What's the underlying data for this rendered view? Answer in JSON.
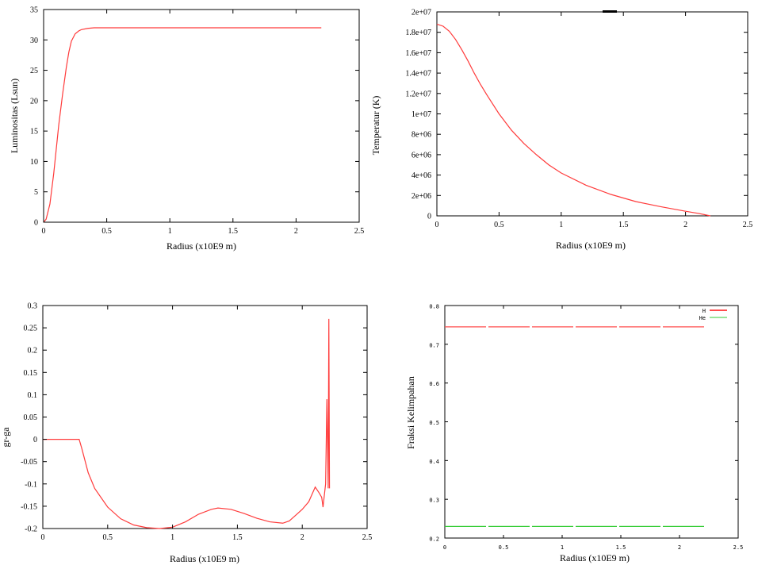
{
  "chart_data": [
    {
      "type": "line",
      "xlabel": "Radius (x10E9 m)",
      "ylabel": "Luminositas (Lsun)",
      "xlim": [
        0,
        2.5
      ],
      "ylim": [
        0,
        35
      ],
      "xticks": [
        "0",
        "0.5",
        "1",
        "1.5",
        "2",
        "2.5"
      ],
      "yticks": [
        "0",
        "5",
        "10",
        "15",
        "20",
        "25",
        "30",
        "35"
      ],
      "grid": false,
      "series": [
        {
          "color": "#ff3b3b",
          "x": [
            0,
            0.02,
            0.05,
            0.08,
            0.1,
            0.12,
            0.15,
            0.18,
            0.2,
            0.22,
            0.25,
            0.28,
            0.3,
            0.35,
            0.4,
            0.5,
            0.7,
            1.0,
            1.5,
            2.0,
            2.2
          ],
          "y": [
            0,
            0.5,
            3,
            8,
            12,
            16,
            21,
            25.5,
            28,
            29.8,
            31,
            31.5,
            31.7,
            31.9,
            32,
            32,
            32,
            32,
            32,
            32,
            32
          ]
        }
      ]
    },
    {
      "type": "line",
      "xlabel": "Radius (x10E9 m)",
      "ylabel": "Temperatur (K)",
      "xlim": [
        0,
        2.5
      ],
      "ylim": [
        0,
        20000000
      ],
      "xticks": [
        "0",
        "0.5",
        "1",
        "1.5",
        "2",
        "2.5"
      ],
      "yticks": [
        "0",
        "2e+06",
        "4e+06",
        "6e+06",
        "8e+06",
        "1e+07",
        "1.2e+07",
        "1.4e+07",
        "1.6e+07",
        "1.8e+07",
        "2e+07"
      ],
      "grid": false,
      "series": [
        {
          "color": "#ff3b3b",
          "x": [
            0,
            0.05,
            0.1,
            0.15,
            0.2,
            0.25,
            0.3,
            0.35,
            0.4,
            0.5,
            0.6,
            0.7,
            0.8,
            0.9,
            1.0,
            1.2,
            1.4,
            1.6,
            1.8,
            2.0,
            2.1,
            2.2
          ],
          "y": [
            18800000,
            18600000,
            18100000,
            17300000,
            16300000,
            15200000,
            14000000,
            12900000,
            11900000,
            10000000,
            8400000,
            7100000,
            6000000,
            5000000,
            4200000,
            3000000,
            2100000,
            1400000,
            900000,
            450000,
            250000,
            0
          ]
        }
      ]
    },
    {
      "type": "line",
      "xlabel": "Radius (x10E9 m)",
      "ylabel": "gr-ga",
      "xlim": [
        0,
        2.5
      ],
      "ylim": [
        -0.2,
        0.3
      ],
      "xticks": [
        "0",
        "0.5",
        "1",
        "1.5",
        "2",
        "2.5"
      ],
      "yticks": [
        "-0.2",
        "-0.15",
        "-0.1",
        "-0.05",
        "0",
        "0.05",
        "0.1",
        "0.15",
        "0.2",
        "0.25",
        "0.3"
      ],
      "grid": false,
      "series": [
        {
          "color": "#ff3b3b",
          "x": [
            0,
            0.1,
            0.2,
            0.28,
            0.3,
            0.35,
            0.4,
            0.5,
            0.6,
            0.7,
            0.8,
            0.9,
            1.0,
            1.1,
            1.2,
            1.3,
            1.35,
            1.45,
            1.55,
            1.65,
            1.75,
            1.85,
            1.9,
            1.95,
            2.0,
            2.05,
            2.1,
            2.13,
            2.15,
            2.16,
            2.18,
            2.19,
            2.2,
            2.205,
            2.21
          ],
          "y": [
            0,
            0,
            0,
            0,
            -0.02,
            -0.075,
            -0.11,
            -0.152,
            -0.178,
            -0.192,
            -0.198,
            -0.2,
            -0.197,
            -0.185,
            -0.168,
            -0.157,
            -0.154,
            -0.157,
            -0.166,
            -0.177,
            -0.185,
            -0.188,
            -0.183,
            -0.17,
            -0.157,
            -0.14,
            -0.107,
            -0.12,
            -0.13,
            -0.152,
            -0.1,
            0.09,
            -0.11,
            0.27,
            -0.11
          ]
        }
      ]
    },
    {
      "type": "line",
      "xlabel": "Radius (x10E9 m)",
      "ylabel": "Fraksi Kelimpahan",
      "xlim": [
        0,
        2.5
      ],
      "ylim": [
        0.2,
        0.8
      ],
      "xticks": [
        "0",
        "0.5",
        "1",
        "1.5",
        "2",
        "2.5"
      ],
      "yticks": [
        "0.2",
        "0.3",
        "0.4",
        "0.5",
        "0.6",
        "0.7",
        "0.8"
      ],
      "grid": false,
      "legend": "top-right",
      "series": [
        {
          "name": "H",
          "color": "#ff4d4d",
          "x": [
            0,
            2.22
          ],
          "y": [
            0.745,
            0.745
          ]
        },
        {
          "name": "He",
          "color": "#33cc33",
          "x": [
            0,
            2.22
          ],
          "y": [
            0.23,
            0.23
          ]
        }
      ]
    }
  ]
}
